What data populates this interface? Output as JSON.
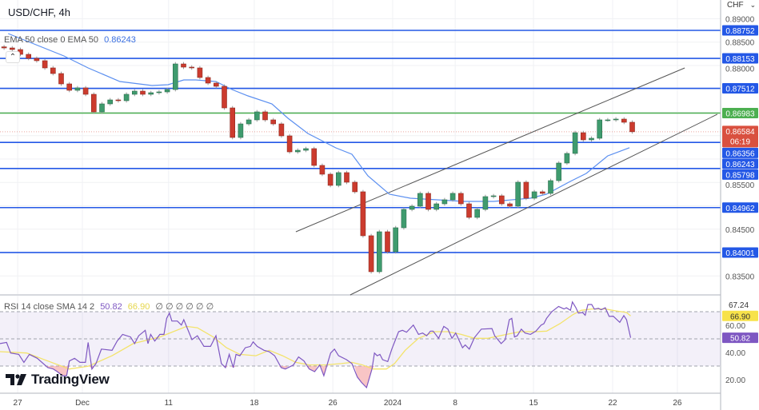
{
  "header": {
    "title": "USD/CHF, 4h",
    "currency": "CHF"
  },
  "ema_legend": {
    "label": "EMA 50 close 0 EMA 50",
    "value": "0.86243"
  },
  "rsi_legend": {
    "label": "RSI 14 close SMA 14 2",
    "rsi_value": "50.82",
    "sma_value": "66.90",
    "extras": "∅ ∅ ∅ ∅ ∅ ∅"
  },
  "logo": {
    "text": "TradingView"
  },
  "colors": {
    "up": "#3f9b6e",
    "down": "#cc3b2e",
    "level": "#2458e6",
    "level_green": "#4caf50",
    "ema": "#5b8ff0",
    "rsi": "#7e57c2",
    "rsi_sma": "#f3e36b",
    "last_price": "#d9503f"
  },
  "chart_data": [
    {
      "type": "candlestick",
      "title": "USD/CHF, 4h",
      "x_unit": "4h bar index",
      "ylim": [
        0.8325,
        0.8905
      ],
      "grid": true,
      "x_ticks": [
        {
          "bar": 6.5,
          "label": "27"
        },
        {
          "bar": 30.3,
          "label": "Dec"
        },
        {
          "bar": 62,
          "label": "11"
        },
        {
          "bar": 93.5,
          "label": "18"
        },
        {
          "bar": 122.4,
          "label": "26"
        },
        {
          "bar": 144.4,
          "label": "2024"
        },
        {
          "bar": 167.4,
          "label": "8"
        },
        {
          "bar": 196.2,
          "label": "15"
        },
        {
          "bar": 225.3,
          "label": "22"
        },
        {
          "bar": 249.1,
          "label": "26"
        }
      ],
      "y_ticks": [
        "0.89000",
        "0.88500",
        "0.88000",
        "0.85500",
        "0.84500",
        "0.83500"
      ],
      "candle_step_bars": 3,
      "first_open": 0.884,
      "closes": [
        0.88376,
        0.88342,
        0.88239,
        0.88154,
        0.88103,
        0.87949,
        0.87829,
        0.87607,
        0.8747,
        0.87522,
        0.87385,
        0.87009,
        0.8718,
        0.87265,
        0.87248,
        0.87385,
        0.87453,
        0.87385,
        0.87419,
        0.87436,
        0.87487,
        0.88034,
        0.87966,
        0.87949,
        0.87744,
        0.87624,
        0.87556,
        0.87094,
        0.86462,
        0.86752,
        0.86838,
        0.87009,
        0.86838,
        0.86752,
        0.86496,
        0.86154,
        0.86188,
        0.86223,
        0.85864,
        0.85676,
        0.85437,
        0.8571,
        0.85505,
        0.853,
        0.8436,
        0.83591,
        0.84445,
        0.84018,
        0.84531,
        0.84924,
        0.84992,
        0.85266,
        0.84924,
        0.85043,
        0.85129,
        0.85266,
        0.85043,
        0.84753,
        0.84924,
        0.85197,
        0.85214,
        0.85043,
        0.84992,
        0.85505,
        0.85163,
        0.853,
        0.85266,
        0.85539,
        0.85915,
        0.8612,
        0.86564,
        0.86411,
        0.86445,
        0.86838,
        0.86838,
        0.86855,
        0.86787,
        0.86584
      ],
      "ema50": [
        [
          3,
          0.88684
        ],
        [
          23.5,
          0.88205
        ],
        [
          32.4,
          0.87949
        ],
        [
          44.1,
          0.87658
        ],
        [
          55.9,
          0.87573
        ],
        [
          61.8,
          0.8759
        ],
        [
          67.6,
          0.87692
        ],
        [
          72,
          0.87692
        ],
        [
          79.4,
          0.87658
        ],
        [
          85.3,
          0.87487
        ],
        [
          91.2,
          0.87351
        ],
        [
          100,
          0.8718
        ],
        [
          105.9,
          0.86872
        ],
        [
          113.2,
          0.86547
        ],
        [
          123.5,
          0.8624
        ],
        [
          129.4,
          0.86103
        ],
        [
          135.3,
          0.85642
        ],
        [
          143.2,
          0.85249
        ],
        [
          150.9,
          0.85163
        ],
        [
          170.6,
          0.85095
        ],
        [
          181.5,
          0.85095
        ],
        [
          195,
          0.85163
        ],
        [
          200.9,
          0.85249
        ],
        [
          209.7,
          0.85522
        ],
        [
          215.6,
          0.85693
        ],
        [
          223.5,
          0.86069
        ],
        [
          231.5,
          0.86243
        ]
      ],
      "levels": [
        {
          "price": 0.88752,
          "label": "0.88752",
          "color": "blue"
        },
        {
          "price": 0.88153,
          "label": "0.88153",
          "color": "blue"
        },
        {
          "price": 0.87512,
          "label": "0.87512",
          "color": "blue"
        },
        {
          "price": 0.86983,
          "label": "0.86983",
          "color": "green"
        },
        {
          "price": 0.86356,
          "label": "0.86356",
          "color": "blue"
        },
        {
          "price": 0.85798,
          "label": "0.85798",
          "color": "blue"
        },
        {
          "price": 0.84962,
          "label": "0.84962",
          "color": "blue"
        },
        {
          "price": 0.84001,
          "label": "0.84001",
          "color": "blue"
        }
      ],
      "ema_tag": {
        "price": 0.86243,
        "label": "0.86243"
      },
      "last_price": {
        "price": 0.86584,
        "label": "0.86584",
        "countdown": "06:19"
      },
      "trendlines": [
        {
          "from": [
            108.8,
            0.84445
          ],
          "to": [
            251.8,
            0.87949
          ]
        },
        {
          "from": [
            128.8,
            0.83095
          ],
          "to": [
            263.8,
            0.86958
          ]
        }
      ]
    },
    {
      "type": "line",
      "title": "RSI 14 close SMA 14 2",
      "ylim": [
        10,
        80
      ],
      "bands": [
        30,
        50,
        70
      ],
      "y_ticks": [
        {
          "value": 60,
          "label": "60.00"
        },
        {
          "value": 40,
          "label": "40.00"
        },
        {
          "value": 20,
          "label": "20.00"
        }
      ],
      "top_label": "67.24",
      "series": [
        {
          "name": "RSI",
          "tag": "50.82",
          "points": [
            [
              0,
              46.5
            ],
            [
              2.4,
              47.4
            ],
            [
              3.9,
              39.6
            ],
            [
              6.9,
              38.6
            ],
            [
              8.8,
              32.7
            ],
            [
              10.8,
              38.6
            ],
            [
              13.7,
              35.7
            ],
            [
              17.6,
              28.8
            ],
            [
              19.6,
              27.8
            ],
            [
              21.1,
              25.9
            ],
            [
              23,
              22.9
            ],
            [
              24.5,
              22.9
            ],
            [
              25.5,
              33.7
            ],
            [
              27.4,
              35.7
            ],
            [
              29.4,
              32.7
            ],
            [
              31.4,
              32.7
            ],
            [
              32.4,
              47.4
            ],
            [
              33.8,
              27.8
            ],
            [
              35.3,
              31.8
            ],
            [
              37.3,
              42.5
            ],
            [
              41.2,
              41.6
            ],
            [
              43.1,
              48.4
            ],
            [
              45.1,
              53.3
            ],
            [
              48,
              51.4
            ],
            [
              49.5,
              46.5
            ],
            [
              51,
              52.3
            ],
            [
              53.4,
              56.3
            ],
            [
              54.4,
              46.5
            ],
            [
              55.4,
              53.3
            ],
            [
              56.9,
              48.4
            ],
            [
              58.8,
              53.3
            ],
            [
              60.3,
              53.3
            ],
            [
              61.3,
              65.1
            ],
            [
              62.3,
              69.0
            ],
            [
              63.2,
              63.1
            ],
            [
              65.2,
              63.1
            ],
            [
              66.7,
              60.2
            ],
            [
              67.6,
              64.1
            ],
            [
              68.6,
              59.2
            ],
            [
              70.6,
              49.4
            ],
            [
              72.6,
              52.3
            ],
            [
              75,
              44.5
            ],
            [
              77.4,
              44.5
            ],
            [
              79.4,
              52.3
            ],
            [
              81.4,
              31.8
            ],
            [
              82.9,
              28.8
            ],
            [
              84.3,
              38.6
            ],
            [
              85.8,
              28.8
            ],
            [
              86.8,
              38.6
            ],
            [
              88.2,
              37.6
            ],
            [
              90.2,
              43.5
            ],
            [
              92.1,
              44.5
            ],
            [
              93.1,
              47.8
            ],
            [
              94.6,
              44.5
            ],
            [
              97.1,
              41.6
            ],
            [
              99,
              40.6
            ],
            [
              101,
              37.6
            ],
            [
              103.4,
              28.8
            ],
            [
              104.9,
              27.8
            ],
            [
              107.9,
              30.8
            ],
            [
              109.8,
              36.7
            ],
            [
              111.8,
              33.7
            ],
            [
              113.7,
              27.8
            ],
            [
              115.7,
              25.9
            ],
            [
              117.6,
              30.8
            ],
            [
              119.1,
              22.9
            ],
            [
              121.6,
              39.6
            ],
            [
              123,
              42.5
            ],
            [
              124.5,
              37.6
            ],
            [
              127.4,
              34.7
            ],
            [
              129.4,
              31.8
            ],
            [
              131.4,
              21.9
            ],
            [
              132.9,
              18.0
            ],
            [
              134.8,
              14.1
            ],
            [
              136.8,
              27.8
            ],
            [
              137.7,
              39.6
            ],
            [
              138.7,
              37.6
            ],
            [
              139.7,
              38.6
            ],
            [
              140.7,
              34.7
            ],
            [
              142.6,
              33.3
            ],
            [
              144.1,
              42.5
            ],
            [
              146.6,
              55.3
            ],
            [
              148,
              56.3
            ],
            [
              149.5,
              54.9
            ],
            [
              152,
              60.2
            ],
            [
              153.9,
              53.3
            ],
            [
              155.4,
              54.3
            ],
            [
              156.9,
              52.3
            ],
            [
              158.3,
              55.7
            ],
            [
              159.3,
              55.7
            ],
            [
              161.3,
              50.4
            ],
            [
              163.2,
              59.2
            ],
            [
              164.7,
              57.2
            ],
            [
              166.2,
              50.4
            ],
            [
              167.6,
              54.3
            ],
            [
              170.1,
              43.5
            ],
            [
              171.1,
              45.5
            ],
            [
              172.6,
              42.5
            ],
            [
              174.5,
              51.0
            ],
            [
              177,
              57.2
            ],
            [
              180.9,
              57.6
            ],
            [
              181.9,
              52.3
            ],
            [
              184.3,
              46.5
            ],
            [
              185.8,
              49.4
            ],
            [
              187.3,
              64.1
            ],
            [
              188.2,
              65.1
            ],
            [
              189.2,
              51.4
            ],
            [
              190.2,
              52.3
            ],
            [
              191.7,
              57.2
            ],
            [
              193.1,
              54.3
            ],
            [
              195.1,
              53.3
            ],
            [
              197.1,
              55.7
            ],
            [
              199,
              60.2
            ],
            [
              200,
              61.2
            ],
            [
              201,
              65.1
            ],
            [
              202.9,
              70.0
            ],
            [
              205.4,
              73.9
            ],
            [
              207.4,
              72.0
            ],
            [
              208.3,
              72.9
            ],
            [
              209.8,
              71.0
            ],
            [
              210.5,
              77.2
            ],
            [
              211.8,
              72.9
            ],
            [
              212.7,
              69.0
            ],
            [
              214.2,
              69.4
            ],
            [
              215.2,
              67.4
            ],
            [
              216.2,
              75.3
            ],
            [
              217.6,
              75.3
            ],
            [
              218.6,
              71.9
            ],
            [
              220.1,
              72.5
            ],
            [
              221.1,
              71.4
            ],
            [
              222.6,
              72.9
            ],
            [
              224,
              66.5
            ],
            [
              225.5,
              66.7
            ],
            [
              227.9,
              62.2
            ],
            [
              229.4,
              67.1
            ],
            [
              230.4,
              64.1
            ],
            [
              231.9,
              50.82
            ]
          ]
        },
        {
          "name": "SMA",
          "tag": "66.90",
          "points": [
            [
              0,
              40.6
            ],
            [
              9.8,
              39.6
            ],
            [
              17.6,
              33.7
            ],
            [
              25.5,
              27.8
            ],
            [
              32.4,
              29.8
            ],
            [
              41.2,
              37.6
            ],
            [
              49,
              46.5
            ],
            [
              58.8,
              51.4
            ],
            [
              68.6,
              59.2
            ],
            [
              72.6,
              58.2
            ],
            [
              78.4,
              51.4
            ],
            [
              83.3,
              43.5
            ],
            [
              88.2,
              38.6
            ],
            [
              94.1,
              37.6
            ],
            [
              99,
              41.6
            ],
            [
              103.9,
              37.6
            ],
            [
              108.8,
              32.7
            ],
            [
              113.7,
              30.8
            ],
            [
              119.6,
              30.8
            ],
            [
              125.5,
              31.8
            ],
            [
              129.4,
              32.7
            ],
            [
              133.3,
              30.8
            ],
            [
              137.3,
              27.8
            ],
            [
              142.1,
              27.8
            ],
            [
              145.1,
              31.8
            ],
            [
              149,
              41.6
            ],
            [
              153.9,
              50.4
            ],
            [
              159.8,
              55.3
            ],
            [
              164.7,
              55.3
            ],
            [
              169.6,
              53.3
            ],
            [
              174.5,
              50.4
            ],
            [
              179.4,
              50.4
            ],
            [
              186.3,
              53.3
            ],
            [
              191.2,
              55.3
            ],
            [
              197.1,
              55.3
            ],
            [
              201,
              55.7
            ],
            [
              205.9,
              61.2
            ],
            [
              210.8,
              68.0
            ],
            [
              213.7,
              71.0
            ],
            [
              217.6,
              72.0
            ],
            [
              222.6,
              72.0
            ],
            [
              226.5,
              70.6
            ],
            [
              230.4,
              69.4
            ],
            [
              231.9,
              66.9
            ]
          ]
        }
      ]
    }
  ]
}
